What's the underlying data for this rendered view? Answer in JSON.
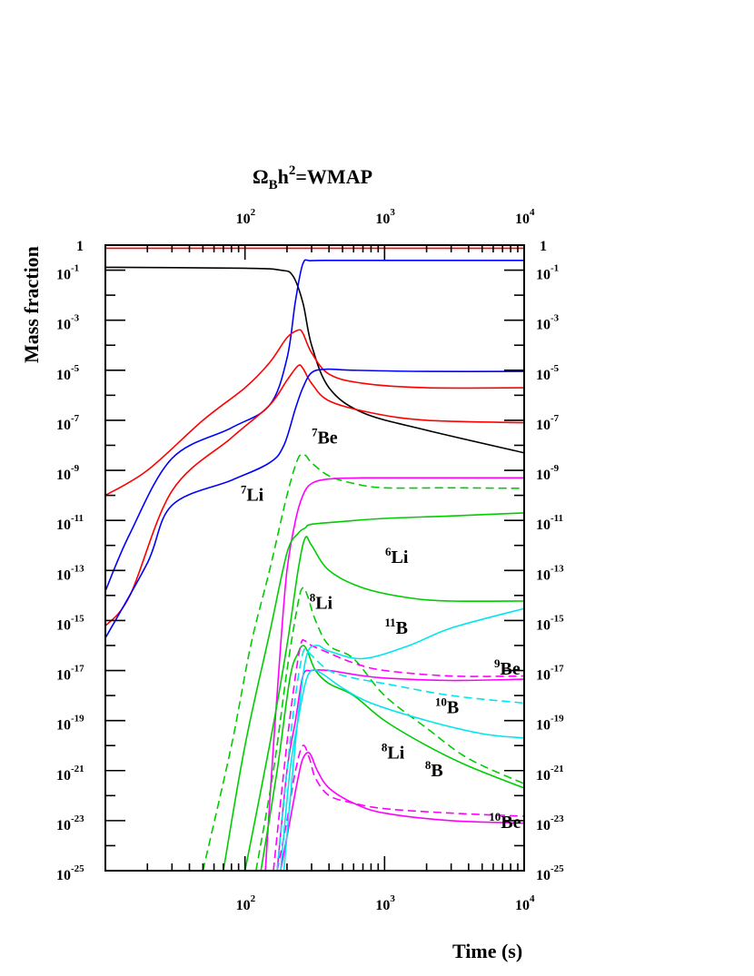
{
  "chart_data": {
    "type": "line",
    "title_prefix": "Ω",
    "title_sub": "B",
    "title_mid": "h",
    "title_sup": "2",
    "title_suffix": "=WMAP",
    "xlabel": "Time (s)",
    "ylabel": "Mass fraction",
    "x_scale": "log",
    "y_scale": "log",
    "xlim": [
      10,
      10000
    ],
    "ylim": [
      1e-25,
      1
    ],
    "x_ticks": [
      {
        "base": "10",
        "exp": "2",
        "value": 100
      },
      {
        "base": "10",
        "exp": "3",
        "value": 1000
      },
      {
        "base": "10",
        "exp": "4",
        "value": 10000
      }
    ],
    "y_ticks": [
      {
        "base": "1",
        "exp": "",
        "value": 1
      },
      {
        "base": "10",
        "exp": "-1",
        "value": 0.1
      },
      {
        "base": "10",
        "exp": "-3",
        "value": 0.001
      },
      {
        "base": "10",
        "exp": "-5",
        "value": 1e-05
      },
      {
        "base": "10",
        "exp": "-7",
        "value": 1e-07
      },
      {
        "base": "10",
        "exp": "-9",
        "value": 1e-09
      },
      {
        "base": "10",
        "exp": "-11",
        "value": 1e-11
      },
      {
        "base": "10",
        "exp": "-13",
        "value": 1e-13
      },
      {
        "base": "10",
        "exp": "-15",
        "value": 1e-15
      },
      {
        "base": "10",
        "exp": "-17",
        "value": 1e-17
      },
      {
        "base": "10",
        "exp": "-19",
        "value": 1e-19
      },
      {
        "base": "10",
        "exp": "-21",
        "value": 1e-21
      },
      {
        "base": "10",
        "exp": "-23",
        "value": 1e-23
      },
      {
        "base": "10",
        "exp": "-25",
        "value": 1e-25
      }
    ],
    "annotations": [
      {
        "sup": "7",
        "text": "Be",
        "color": "#ff00ff",
        "x": 300,
        "y": 1.2e-08
      },
      {
        "sup": "7",
        "text": "Li",
        "color": "#00cc00",
        "x": 93,
        "y": 6e-11
      },
      {
        "sup": "6",
        "text": "Li",
        "color": "#00cc00",
        "x": 1010,
        "y": 2e-13
      },
      {
        "sup": "8",
        "text": "Li",
        "color": "#00cc00",
        "x": 290,
        "y": 3e-15
      },
      {
        "sup": "11",
        "text": "B",
        "color": "#00e5ee",
        "x": 1000,
        "y": 3e-16
      },
      {
        "sup": "9",
        "text": "Be",
        "color": "#ff00ff",
        "x": 6100,
        "y": 7e-18
      },
      {
        "sup": "10",
        "text": "B",
        "color": "#00e5ee",
        "x": 2300,
        "y": 2e-19
      },
      {
        "sup": "8",
        "text": "Li",
        "color": "#00cc00",
        "x": 950,
        "y": 3e-21
      },
      {
        "sup": "8",
        "text": "B",
        "color": "#00e5ee",
        "x": 1950,
        "y": 6e-22
      },
      {
        "sup": "10",
        "text": "Be",
        "color": "#ff00ff",
        "x": 5600,
        "y": 5e-24
      }
    ],
    "series": [
      {
        "color": "#ff0000",
        "dash": false,
        "x": [
          10,
          100,
          300,
          1000,
          10000
        ],
        "y": [
          0.75,
          0.75,
          0.752,
          0.752,
          0.752
        ]
      },
      {
        "color": "#000000",
        "dash": false,
        "x": [
          10,
          100,
          180,
          220,
          260,
          300,
          400,
          700,
          2000,
          10000
        ],
        "y": [
          0.13,
          0.12,
          0.1,
          0.06,
          0.005,
          0.0001,
          2e-06,
          2e-07,
          4e-08,
          5e-09
        ]
      },
      {
        "color": "#0000ff",
        "dash": false,
        "x": [
          10,
          15,
          30,
          80,
          150,
          200,
          230,
          260,
          300,
          500,
          2000,
          10000
        ],
        "y": [
          1.5e-14,
          3e-12,
          3e-09,
          5e-08,
          4e-07,
          3e-05,
          0.006,
          0.18,
          0.24,
          0.245,
          0.245,
          0.245
        ]
      },
      {
        "color": "#ff0000",
        "dash": false,
        "x": [
          10,
          20,
          50,
          100,
          150,
          200,
          240,
          260,
          300,
          400,
          700,
          2000,
          10000
        ],
        "y": [
          1e-10,
          1e-09,
          1e-07,
          2e-06,
          2e-05,
          0.0002,
          0.0004,
          0.0003,
          5e-05,
          7e-06,
          3e-06,
          2e-06,
          2e-06
        ]
      },
      {
        "color": "#ff0000",
        "dash": false,
        "x": [
          10,
          15,
          30,
          80,
          150,
          200,
          240,
          260,
          300,
          400,
          800,
          2000,
          10000
        ],
        "y": [
          6e-16,
          1e-14,
          1.5e-10,
          2e-08,
          4e-07,
          4e-06,
          1.5e-05,
          1.2e-05,
          3e-06,
          6e-07,
          2e-07,
          1e-07,
          8e-08
        ]
      },
      {
        "color": "#0000ff",
        "dash": false,
        "x": [
          10,
          20,
          30,
          80,
          150,
          190,
          230,
          260,
          300,
          380,
          600,
          2000,
          10000
        ],
        "y": [
          2e-16,
          2e-13,
          4e-11,
          4e-10,
          2e-09,
          1e-08,
          3e-07,
          2e-06,
          8e-06,
          1.1e-05,
          1e-05,
          9e-06,
          9e-06
        ]
      },
      {
        "color": "#00cc00",
        "dash": true,
        "x": [
          50,
          80,
          110,
          150,
          200,
          240,
          270,
          300,
          400,
          600,
          1000,
          3000,
          10000
        ],
        "y": [
          1e-25,
          1e-20,
          1e-16,
          1e-13,
          1e-10,
          3e-09,
          4e-09,
          2e-09,
          6e-10,
          3e-10,
          2e-10,
          2e-10,
          1.9e-10
        ]
      },
      {
        "color": "#ff00ff",
        "dash": false,
        "x": [
          140,
          160,
          180,
          200,
          230,
          260,
          300,
          400,
          700,
          2000,
          10000
        ],
        "y": [
          1e-25,
          1e-20,
          1e-16,
          1e-13,
          1e-11,
          1e-10,
          3e-10,
          4.5e-10,
          5e-10,
          5e-10,
          5e-10
        ]
      },
      {
        "color": "#00cc00",
        "dash": false,
        "x": [
          70,
          100,
          150,
          200,
          240,
          270,
          300,
          500,
          1000,
          3000,
          10000
        ],
        "y": [
          1e-25,
          1e-20,
          3e-16,
          5e-13,
          3e-12,
          5e-12,
          7e-12,
          9e-12,
          1.2e-11,
          1.5e-11,
          2e-11
        ]
      },
      {
        "color": "#00cc00",
        "dash": false,
        "x": [
          100,
          150,
          200,
          240,
          270,
          300,
          400,
          700,
          1500,
          3000,
          10000
        ],
        "y": [
          1e-25,
          1e-20,
          1e-16,
          1e-13,
          2e-12,
          1e-12,
          1e-13,
          2e-14,
          8e-15,
          6e-15,
          6e-15
        ]
      },
      {
        "color": "#00cc00",
        "dash": true,
        "x": [
          120,
          160,
          200,
          240,
          260,
          280,
          320,
          400,
          600,
          1000,
          2000,
          4000,
          10000
        ],
        "y": [
          1e-25,
          1e-21,
          1e-17,
          5e-15,
          2e-14,
          1e-14,
          1e-15,
          1e-16,
          3e-17,
          1e-18,
          5e-20,
          3e-21,
          3e-22
        ]
      },
      {
        "color": "#00cc00",
        "dash": false,
        "x": [
          130,
          170,
          210,
          240,
          260,
          280,
          320,
          400,
          600,
          1000,
          2000,
          4000,
          10000
        ],
        "y": [
          1e-25,
          1e-21,
          5e-18,
          5e-17,
          1e-16,
          6e-17,
          1e-17,
          3e-18,
          1e-18,
          1e-19,
          1e-20,
          1.5e-21,
          2e-22
        ]
      },
      {
        "color": "#ff00ff",
        "dash": true,
        "x": [
          160,
          190,
          220,
          250,
          270,
          300,
          400,
          600,
          1000,
          3000,
          10000
        ],
        "y": [
          1e-25,
          1e-21,
          1e-18,
          1e-16,
          1.5e-16,
          1e-16,
          5e-17,
          2e-17,
          1e-17,
          6e-18,
          6e-18
        ]
      },
      {
        "color": "#ff00ff",
        "dash": false,
        "x": [
          170,
          200,
          230,
          260,
          300,
          400,
          600,
          1000,
          3000,
          10000
        ],
        "y": [
          1e-25,
          1e-21,
          1e-19,
          6e-18,
          1e-17,
          1e-17,
          7e-18,
          5e-18,
          4e-18,
          4.5e-18
        ]
      },
      {
        "color": "#ff00ff",
        "dash": true,
        "x": [
          170,
          200,
          230,
          260,
          290,
          320,
          400,
          600,
          1000,
          3000,
          10000
        ],
        "y": [
          1e-25,
          1e-23,
          1e-21,
          1e-20,
          3e-21,
          5e-22,
          1e-22,
          5e-23,
          3e-23,
          2e-23,
          1.5e-23
        ]
      },
      {
        "color": "#ff00ff",
        "dash": false,
        "x": [
          180,
          210,
          240,
          260,
          290,
          330,
          400,
          600,
          1000,
          3000,
          10000
        ],
        "y": [
          1e-25,
          1e-23,
          5e-22,
          3e-21,
          5e-21,
          1e-21,
          2e-22,
          5e-23,
          2e-23,
          1e-23,
          8e-24
        ]
      },
      {
        "color": "#00e5ee",
        "dash": true,
        "x": [
          170,
          200,
          230,
          260,
          280,
          300,
          400,
          600,
          1000,
          3000,
          10000
        ],
        "y": [
          1e-25,
          1e-21,
          1e-18,
          5e-17,
          6e-17,
          4e-17,
          1e-17,
          5e-18,
          3e-18,
          1e-18,
          5e-19
        ]
      },
      {
        "color": "#00e5ee",
        "dash": false,
        "x": [
          180,
          210,
          240,
          270,
          300,
          350,
          500,
          800,
          2000,
          5000,
          10000
        ],
        "y": [
          1e-25,
          1e-21,
          1e-19,
          3e-18,
          1e-17,
          8e-18,
          2e-18,
          5e-19,
          1e-19,
          3e-20,
          2e-20
        ]
      },
      {
        "color": "#00e5ee",
        "dash": false,
        "x": [
          190,
          220,
          250,
          280,
          330,
          400,
          700,
          1500,
          3000,
          10000
        ],
        "y": [
          1e-25,
          1e-21,
          1e-18,
          5e-17,
          1e-16,
          6e-17,
          3e-17,
          1e-16,
          5e-16,
          3e-15
        ]
      }
    ]
  }
}
